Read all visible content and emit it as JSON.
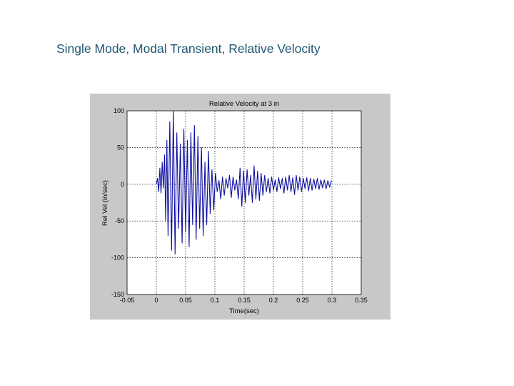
{
  "slide": {
    "title": "Single Mode, Modal Transient, Relative Velocity",
    "title_color": "#1f5673"
  },
  "chart_data": {
    "type": "line",
    "title": "Relative Velocity at 3 in",
    "xlabel": "Time(sec)",
    "ylabel": "Rel Vel (in/sec)",
    "xlim": [
      -0.05,
      0.35
    ],
    "ylim": [
      -150,
      100
    ],
    "x_ticks": [
      -0.05,
      0,
      0.05,
      0.1,
      0.15,
      0.2,
      0.25,
      0.3,
      0.35
    ],
    "x_tick_labels": [
      "-0.05",
      "0",
      "0.05",
      "0.1",
      "0.15",
      "0.2",
      "0.25",
      "0.3",
      "0.35"
    ],
    "y_ticks": [
      100,
      50,
      0,
      -50,
      -100,
      -150
    ],
    "y_tick_labels": [
      "100",
      "50",
      "0",
      "-50",
      "-100",
      "-150"
    ],
    "grid": true,
    "series": [
      {
        "name": "relative velocity",
        "color": "#1010a0",
        "x": [
          0.0,
          0.002,
          0.004,
          0.006,
          0.008,
          0.01,
          0.012,
          0.014,
          0.016,
          0.018,
          0.02,
          0.023,
          0.026,
          0.029,
          0.032,
          0.035,
          0.038,
          0.041,
          0.044,
          0.047,
          0.05,
          0.053,
          0.056,
          0.059,
          0.062,
          0.065,
          0.068,
          0.071,
          0.074,
          0.077,
          0.08,
          0.083,
          0.086,
          0.089,
          0.092,
          0.095,
          0.098,
          0.101,
          0.104,
          0.107,
          0.11,
          0.113,
          0.116,
          0.119,
          0.122,
          0.125,
          0.128,
          0.131,
          0.134,
          0.137,
          0.14,
          0.143,
          0.146,
          0.149,
          0.152,
          0.155,
          0.158,
          0.161,
          0.164,
          0.167,
          0.17,
          0.173,
          0.176,
          0.179,
          0.182,
          0.185,
          0.188,
          0.191,
          0.194,
          0.197,
          0.2,
          0.203,
          0.206,
          0.209,
          0.212,
          0.215,
          0.218,
          0.221,
          0.224,
          0.227,
          0.23,
          0.233,
          0.236,
          0.239,
          0.242,
          0.245,
          0.248,
          0.251,
          0.254,
          0.257,
          0.26,
          0.263,
          0.266,
          0.269,
          0.272,
          0.275,
          0.278,
          0.281,
          0.284,
          0.287,
          0.29,
          0.293,
          0.296,
          0.299
        ],
        "y": [
          0,
          8,
          -10,
          22,
          -12,
          30,
          -5,
          40,
          -50,
          60,
          -70,
          85,
          -90,
          100,
          -95,
          70,
          -60,
          55,
          -80,
          75,
          -65,
          60,
          -85,
          70,
          -55,
          80,
          -75,
          65,
          -60,
          50,
          -70,
          30,
          -55,
          45,
          -40,
          20,
          -35,
          15,
          -10,
          5,
          -20,
          10,
          -15,
          8,
          -5,
          12,
          -18,
          10,
          -8,
          6,
          -20,
          22,
          -30,
          18,
          -25,
          20,
          -15,
          12,
          -25,
          25,
          -20,
          18,
          -22,
          15,
          -15,
          12,
          -10,
          8,
          -12,
          10,
          -8,
          6,
          -10,
          9,
          -6,
          8,
          -12,
          10,
          -8,
          12,
          -10,
          9,
          -14,
          12,
          -8,
          10,
          -10,
          8,
          -6,
          9,
          -9,
          8,
          -8,
          7,
          -6,
          8,
          -7,
          6,
          -5,
          6,
          -6,
          5,
          -4,
          5
        ]
      }
    ]
  }
}
